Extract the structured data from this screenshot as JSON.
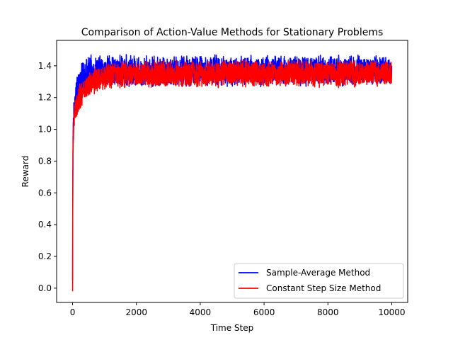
{
  "chart_data": {
    "type": "line",
    "title": "Comparison of Action-Value Methods for Stationary Problems",
    "xlabel": "Time Step",
    "ylabel": "Reward",
    "xlim": [
      -500,
      10500
    ],
    "ylim": [
      -0.09,
      1.56
    ],
    "xticks": [
      0,
      2000,
      4000,
      6000,
      8000,
      10000
    ],
    "xtick_labels": [
      "0",
      "2000",
      "4000",
      "6000",
      "8000",
      "10000"
    ],
    "yticks": [
      0.0,
      0.2,
      0.4,
      0.6,
      0.8,
      1.0,
      1.2,
      1.4
    ],
    "ytick_labels": [
      "0.0",
      "0.2",
      "0.4",
      "0.6",
      "0.8",
      "1.0",
      "1.2",
      "1.4"
    ],
    "grid": false,
    "legend": "lower-right",
    "series": [
      {
        "name": "Sample-Average Method",
        "color": "#0000ff",
        "x": [
          0,
          5,
          10,
          20,
          40,
          70,
          100,
          150,
          200,
          300,
          400,
          500,
          700,
          1000,
          1500,
          2000,
          3000,
          4000,
          5000,
          6000,
          7000,
          8000,
          9000,
          10000
        ],
        "y": [
          0.05,
          0.55,
          0.8,
          1.0,
          1.1,
          1.15,
          1.2,
          1.25,
          1.28,
          1.32,
          1.35,
          1.36,
          1.37,
          1.37,
          1.37,
          1.37,
          1.37,
          1.37,
          1.37,
          1.37,
          1.37,
          1.37,
          1.37,
          1.37
        ],
        "spread": [
          0.0,
          0.05,
          0.06,
          0.06,
          0.06,
          0.06,
          0.07,
          0.07,
          0.08,
          0.08,
          0.08,
          0.08,
          0.08,
          0.08,
          0.08,
          0.08,
          0.08,
          0.08,
          0.08,
          0.08,
          0.08,
          0.08,
          0.08,
          0.08
        ]
      },
      {
        "name": "Constant Step Size Method",
        "color": "#ff0000",
        "x": [
          0,
          5,
          10,
          20,
          40,
          70,
          100,
          150,
          200,
          300,
          400,
          500,
          700,
          1000,
          1500,
          2000,
          3000,
          4000,
          5000,
          6000,
          7000,
          8000,
          9000,
          10000
        ],
        "y": [
          -0.02,
          0.5,
          0.75,
          0.95,
          1.05,
          1.1,
          1.13,
          1.16,
          1.19,
          1.23,
          1.26,
          1.28,
          1.31,
          1.33,
          1.34,
          1.35,
          1.35,
          1.35,
          1.35,
          1.35,
          1.35,
          1.35,
          1.35,
          1.35
        ],
        "spread": [
          0.0,
          0.05,
          0.06,
          0.06,
          0.06,
          0.06,
          0.06,
          0.06,
          0.07,
          0.07,
          0.07,
          0.07,
          0.07,
          0.07,
          0.07,
          0.07,
          0.07,
          0.07,
          0.07,
          0.07,
          0.07,
          0.07,
          0.07,
          0.07
        ]
      }
    ]
  }
}
